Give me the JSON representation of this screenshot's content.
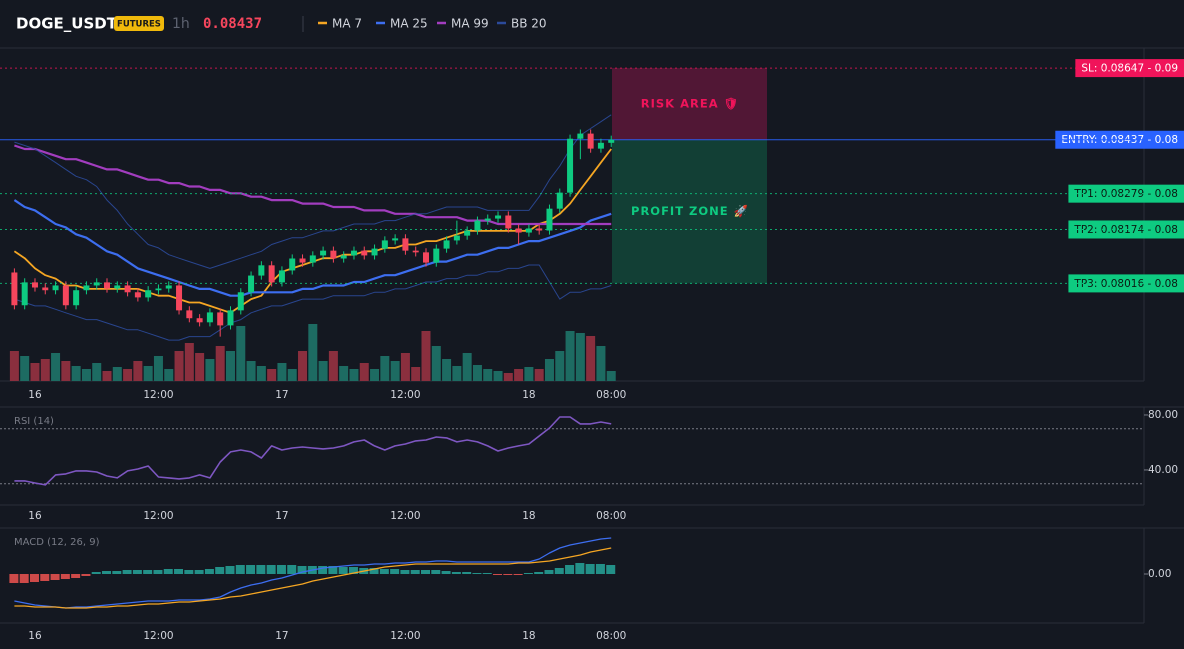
{
  "chart_data": {
    "type": "candlestick",
    "symbol": "DOGE_USDT",
    "badge": "FUTURES",
    "interval": "1h",
    "last_price": 0.08437,
    "categories": [
      null,
      null,
      "16",
      null,
      null,
      null,
      null,
      null,
      null,
      null,
      null,
      null,
      null,
      null,
      "12:00",
      null,
      null,
      null,
      null,
      null,
      null,
      null,
      null,
      null,
      null,
      null,
      "17",
      null,
      null,
      null,
      null,
      null,
      null,
      null,
      null,
      null,
      null,
      null,
      "12:00",
      null,
      null,
      null,
      null,
      null,
      null,
      null,
      null,
      null,
      null,
      null,
      "18",
      null,
      null,
      null,
      null,
      null,
      null,
      null,
      "08:00"
    ],
    "open": [
      0.08048,
      0.07952,
      0.08019,
      0.08004,
      0.07996,
      0.0801,
      0.07952,
      0.07996,
      0.0801,
      0.08019,
      0.08001,
      0.0801,
      0.0799,
      0.07975,
      0.07996,
      0.08001,
      0.0801,
      0.07937,
      0.07914,
      0.07902,
      0.07931,
      0.07893,
      0.07937,
      0.0799,
      0.08039,
      0.08069,
      0.08019,
      0.08054,
      0.08089,
      0.08077,
      0.08098,
      0.08112,
      0.08089,
      0.08098,
      0.08112,
      0.08098,
      0.08118,
      0.08142,
      0.08148,
      0.08112,
      0.08107,
      0.08077,
      0.08118,
      0.08142,
      0.08156,
      0.08171,
      0.082,
      0.08206,
      0.08215,
      0.08177,
      0.08165,
      0.08177,
      0.08171,
      0.08235,
      0.08282,
      0.0844,
      0.08455,
      0.08411,
      0.08428
    ],
    "high": [
      0.0806,
      0.08031,
      0.08031,
      0.08016,
      0.08022,
      0.08022,
      0.08008,
      0.08022,
      0.08031,
      0.08031,
      0.08022,
      0.08022,
      0.08002,
      0.08008,
      0.08013,
      0.08022,
      0.08022,
      0.07949,
      0.07926,
      0.07943,
      0.07943,
      0.07949,
      0.08002,
      0.08051,
      0.08081,
      0.08081,
      0.08066,
      0.08101,
      0.08101,
      0.0811,
      0.08124,
      0.08124,
      0.0811,
      0.08124,
      0.08124,
      0.0813,
      0.08154,
      0.0816,
      0.0816,
      0.08124,
      0.08119,
      0.0813,
      0.08154,
      0.082,
      0.08183,
      0.08212,
      0.08218,
      0.08227,
      0.08227,
      0.08189,
      0.08189,
      0.08189,
      0.08247,
      0.08294,
      0.08452,
      0.08467,
      0.08467,
      0.0844,
      0.08449
    ],
    "low": [
      0.0794,
      0.0794,
      0.07992,
      0.07984,
      0.07984,
      0.0794,
      0.0794,
      0.07984,
      0.07998,
      0.07989,
      0.07989,
      0.07978,
      0.07963,
      0.07963,
      0.07984,
      0.07989,
      0.07925,
      0.07902,
      0.0789,
      0.0789,
      0.0786,
      0.07881,
      0.07925,
      0.07978,
      0.08027,
      0.08007,
      0.08007,
      0.08042,
      0.08065,
      0.08065,
      0.08086,
      0.08077,
      0.08077,
      0.08086,
      0.08086,
      0.08086,
      0.08106,
      0.0813,
      0.081,
      0.08095,
      0.08065,
      0.08065,
      0.08106,
      0.0813,
      0.08144,
      0.08159,
      0.08188,
      0.08194,
      0.08165,
      0.0813,
      0.08153,
      0.08159,
      0.08159,
      0.08223,
      0.0827,
      0.0838,
      0.08399,
      0.08399,
      0.08416
    ],
    "close": [
      0.07952,
      0.08019,
      0.08004,
      0.07996,
      0.0801,
      0.07952,
      0.07996,
      0.0801,
      0.08019,
      0.08001,
      0.0801,
      0.0799,
      0.07975,
      0.07996,
      0.08001,
      0.0801,
      0.07937,
      0.07914,
      0.07902,
      0.07931,
      0.07893,
      0.07937,
      0.0799,
      0.08039,
      0.08069,
      0.08019,
      0.08054,
      0.08089,
      0.08077,
      0.08098,
      0.08112,
      0.08089,
      0.08098,
      0.08112,
      0.08098,
      0.08118,
      0.08142,
      0.08148,
      0.08112,
      0.08107,
      0.08077,
      0.08118,
      0.08142,
      0.08156,
      0.08171,
      0.082,
      0.08206,
      0.08215,
      0.08177,
      0.08165,
      0.08177,
      0.08171,
      0.08235,
      0.08282,
      0.0844,
      0.08455,
      0.08411,
      0.08428,
      0.08437
    ],
    "volume": [
      30,
      25,
      18,
      22,
      28,
      20,
      15,
      12,
      18,
      10,
      14,
      12,
      20,
      15,
      25,
      12,
      30,
      38,
      28,
      22,
      35,
      30,
      55,
      20,
      15,
      12,
      18,
      12,
      30,
      57,
      20,
      30,
      15,
      12,
      18,
      12,
      25,
      20,
      28,
      14,
      50,
      35,
      22,
      15,
      28,
      16,
      12,
      10,
      8,
      12,
      14,
      12,
      22,
      30,
      50,
      48,
      45,
      35,
      10
    ],
    "colors": {
      "up": "#0ecb81",
      "down": "#f6465d",
      "volume_up": "#1d6b62",
      "volume_down": "#8a2f3e"
    },
    "ylim": [
      0.0773,
      0.087
    ],
    "volume_ylim": [
      0,
      100
    ],
    "overlays": [
      {
        "name": "MA 7",
        "color": "#f5a623",
        "width": 1.8,
        "values": [
          0.0811,
          0.0809,
          0.0806,
          0.0804,
          0.0803,
          0.0801,
          0.0801,
          0.08,
          0.08,
          0.08,
          0.08,
          0.08,
          0.08,
          0.0799,
          0.0798,
          0.0798,
          0.0797,
          0.0796,
          0.0796,
          0.0795,
          0.0794,
          0.0793,
          0.0795,
          0.0797,
          0.0798,
          0.0802,
          0.0805,
          0.0806,
          0.0807,
          0.0808,
          0.0809,
          0.0809,
          0.081,
          0.081,
          0.0811,
          0.0811,
          0.0812,
          0.0812,
          0.0813,
          0.0813,
          0.0814,
          0.0814,
          0.0815,
          0.0816,
          0.0817,
          0.0817,
          0.0817,
          0.0817,
          0.0817,
          0.0817,
          0.0817,
          0.0819,
          0.082,
          0.0822,
          0.0825,
          0.0829,
          0.0833,
          0.0837,
          0.0841
        ]
      },
      {
        "name": "MA 25",
        "color": "#3d6ef0",
        "width": 2.2,
        "values": [
          0.0826,
          0.0824,
          0.0823,
          0.0821,
          0.0819,
          0.0818,
          0.0816,
          0.0815,
          0.0813,
          0.0811,
          0.081,
          0.0808,
          0.0806,
          0.0805,
          0.0804,
          0.0803,
          0.0802,
          0.0801,
          0.08,
          0.08,
          0.0799,
          0.0798,
          0.0798,
          0.0799,
          0.0799,
          0.0799,
          0.0799,
          0.0799,
          0.08,
          0.08,
          0.0801,
          0.0801,
          0.0801,
          0.0802,
          0.0802,
          0.0803,
          0.0804,
          0.0804,
          0.0805,
          0.0806,
          0.0807,
          0.0808,
          0.0808,
          0.0809,
          0.081,
          0.081,
          0.0811,
          0.0812,
          0.0812,
          0.0813,
          0.0814,
          0.0814,
          0.0815,
          0.0816,
          0.0817,
          0.0818,
          0.082,
          0.0821,
          0.0822
        ]
      },
      {
        "name": "MA 99",
        "color": "#a23dbf",
        "width": 2.2,
        "values": [
          0.0842,
          0.0841,
          0.0841,
          0.084,
          0.0839,
          0.0838,
          0.0838,
          0.0837,
          0.0836,
          0.0835,
          0.0835,
          0.0834,
          0.0833,
          0.0832,
          0.0832,
          0.0831,
          0.0831,
          0.083,
          0.083,
          0.0829,
          0.0829,
          0.0828,
          0.0828,
          0.0827,
          0.0827,
          0.0826,
          0.0826,
          0.0826,
          0.0825,
          0.0825,
          0.0825,
          0.0824,
          0.0824,
          0.0824,
          0.0823,
          0.0823,
          0.0823,
          0.0822,
          0.0822,
          0.0822,
          0.0821,
          0.0821,
          0.0821,
          0.0821,
          0.082,
          0.082,
          0.082,
          0.0819,
          0.0819,
          0.0819,
          0.0819,
          0.0819,
          0.0819,
          0.0819,
          0.0819,
          0.0819,
          0.0819,
          0.0819,
          0.0819
        ]
      },
      {
        "name": "BB 20",
        "color": "#2b4a9a",
        "width": 1,
        "values": [
          0.0843,
          0.0842,
          0.0841,
          0.0839,
          0.0837,
          0.0835,
          0.0833,
          0.0832,
          0.083,
          0.0826,
          0.0823,
          0.0819,
          0.0816,
          0.0813,
          0.0812,
          0.081,
          0.0809,
          0.0808,
          0.0807,
          0.0806,
          0.0807,
          0.0808,
          0.0809,
          0.081,
          0.0811,
          0.0813,
          0.0814,
          0.0815,
          0.0815,
          0.0816,
          0.0817,
          0.0817,
          0.0818,
          0.0819,
          0.0819,
          0.0819,
          0.082,
          0.082,
          0.0821,
          0.0822,
          0.0822,
          0.0823,
          0.0824,
          0.0824,
          0.0824,
          0.0824,
          0.0823,
          0.0823,
          0.0823,
          0.0823,
          0.0823,
          0.0827,
          0.0832,
          0.0836,
          0.0841,
          0.0845,
          0.0847,
          0.0849,
          0.0851
        ],
        "lower": [
          0.0797,
          0.0796,
          0.0795,
          0.0795,
          0.0794,
          0.0793,
          0.0792,
          0.0791,
          0.0791,
          0.079,
          0.0789,
          0.0788,
          0.0788,
          0.0787,
          0.0786,
          0.0785,
          0.0785,
          0.0786,
          0.0786,
          0.0786,
          0.0788,
          0.079,
          0.0791,
          0.0793,
          0.0794,
          0.0795,
          0.0795,
          0.0796,
          0.0797,
          0.0797,
          0.0797,
          0.0798,
          0.0798,
          0.0798,
          0.0798,
          0.0799,
          0.0799,
          0.08,
          0.08,
          0.0801,
          0.0802,
          0.0802,
          0.0803,
          0.0803,
          0.0804,
          0.0804,
          0.0805,
          0.0805,
          0.0806,
          0.0806,
          0.0807,
          0.0807,
          0.0802,
          0.0797,
          0.0799,
          0.0799,
          0.08,
          0.08,
          0.0801
        ]
      }
    ],
    "levels": [
      {
        "value": 0.08647,
        "label": "SL: 0.08647 - 0.09",
        "color": "#f0145a",
        "text_color": "#ffffff",
        "dash": "2 3"
      },
      {
        "value": 0.08437,
        "label": "ENTRY: 0.08437 - 0.08",
        "color": "#2962ff",
        "text_color": "#ffffff",
        "dash": "none"
      },
      {
        "value": 0.08279,
        "label": "TP1: 0.08279 - 0.08",
        "color": "#0ecb81",
        "text_color": "#0b1a12",
        "dash": "2 3"
      },
      {
        "value": 0.08174,
        "label": "TP2: 0.08174 - 0.08",
        "color": "#0ecb81",
        "text_color": "#0b1a12",
        "dash": "2 3"
      },
      {
        "value": 0.08016,
        "label": "TP3: 0.08016 - 0.08",
        "color": "#0ecb81",
        "text_color": "#0b1a12",
        "dash": "2 3"
      }
    ],
    "zones": [
      {
        "label": "RISK AREA 🛡",
        "color": "#c2185b",
        "text_color": "#f0145a"
      },
      {
        "label": "PROFIT ZONE 🚀",
        "color": "#0ecb81",
        "text_color": "#0ecb81"
      }
    ],
    "rsi": {
      "title": "RSI (14)",
      "color": "#7e57c2",
      "ylim": [
        14.5,
        85.8
      ],
      "yticks": [
        {
          "value": 80,
          "label": "80.00"
        },
        {
          "value": 40,
          "label": "40.00"
        }
      ],
      "levels": [
        70,
        30
      ],
      "values": [
        32.0,
        32.0,
        30.5,
        29.1,
        36.4,
        37.1,
        39.3,
        39.3,
        38.5,
        35.6,
        34.2,
        39.3,
        40.7,
        42.9,
        34.9,
        34.2,
        33.5,
        34.2,
        36.4,
        34.2,
        45.8,
        53.1,
        54.5,
        53.1,
        48.7,
        57.5,
        54.5,
        56.0,
        56.7,
        56.0,
        55.3,
        56.0,
        57.5,
        60.4,
        61.8,
        57.5,
        54.5,
        57.5,
        58.9,
        61.1,
        61.8,
        64.0,
        63.3,
        60.4,
        61.8,
        60.4,
        57.5,
        53.8,
        56.0,
        57.5,
        58.9,
        64.7,
        70.5,
        78.5,
        78.5,
        73.5,
        73.5,
        74.9,
        73.5
      ]
    },
    "macd": {
      "title": "MACD (12, 26, 9)",
      "ylim": [
        -0.00049,
        0.00046
      ],
      "yticks": [
        {
          "value": 0,
          "label": "0.00"
        }
      ],
      "macd_color": "#3d6ef0",
      "signal_color": "#f5a623",
      "histogram_colors": {
        "up": "#26a69a",
        "down": "#ef5350"
      },
      "macd": [
        -0.00027,
        -0.00029,
        -0.00031,
        -0.00032,
        -0.00033,
        -0.00034,
        -0.00033,
        -0.00033,
        -0.00032,
        -0.00031,
        -0.0003,
        -0.00029,
        -0.00028,
        -0.00027,
        -0.00027,
        -0.00027,
        -0.00026,
        -0.00026,
        -0.00026,
        -0.00025,
        -0.00023,
        -0.00018,
        -0.00014,
        -0.00011,
        -9e-05,
        -6e-05,
        -4e-05,
        -1e-05,
        2e-05,
        4e-05,
        6e-05,
        7e-05,
        8e-05,
        9e-05,
        9e-05,
        0.0001,
        0.0001,
        0.00011,
        0.00011,
        0.00012,
        0.00012,
        0.00013,
        0.00013,
        0.00012,
        0.00012,
        0.00012,
        0.00012,
        0.00012,
        0.00012,
        0.00012,
        0.00012,
        0.00015,
        0.00021,
        0.00026,
        0.00029,
        0.00031,
        0.00033,
        0.00035,
        0.00036
      ],
      "signal": [
        -0.00032,
        -0.00032,
        -0.00033,
        -0.00033,
        -0.00033,
        -0.00034,
        -0.00034,
        -0.00034,
        -0.00033,
        -0.00033,
        -0.00032,
        -0.00032,
        -0.00031,
        -0.0003,
        -0.0003,
        -0.00029,
        -0.00028,
        -0.00028,
        -0.00027,
        -0.00026,
        -0.00025,
        -0.00023,
        -0.00022,
        -0.0002,
        -0.00018,
        -0.00016,
        -0.00014,
        -0.00012,
        -0.0001,
        -7e-05,
        -5e-05,
        -3e-05,
        -1e-05,
        1e-05,
        3e-05,
        5e-05,
        7e-05,
        8e-05,
        9e-05,
        0.0001,
        0.0001,
        0.0001,
        0.0001,
        0.0001,
        0.0001,
        0.0001,
        0.0001,
        0.0001,
        0.0001,
        0.00011,
        0.00011,
        0.00012,
        0.00013,
        0.00015,
        0.00017,
        0.00019,
        0.00022,
        0.00024,
        0.00026
      ],
      "histogram": [
        -9e-05,
        -9e-05,
        -8e-05,
        -7e-05,
        -6e-05,
        -5e-05,
        -4e-05,
        -2e-05,
        2e-05,
        3e-05,
        3e-05,
        4e-05,
        4e-05,
        4e-05,
        4e-05,
        5e-05,
        5e-05,
        4e-05,
        4e-05,
        5e-05,
        7e-05,
        8e-05,
        9e-05,
        9e-05,
        9e-05,
        9e-05,
        9e-05,
        9e-05,
        8e-05,
        8e-05,
        8e-05,
        8e-05,
        7e-05,
        7e-05,
        6e-05,
        6e-05,
        5e-05,
        5e-05,
        4e-05,
        4e-05,
        4e-05,
        4e-05,
        3e-05,
        2e-05,
        2e-05,
        1e-05,
        1e-05,
        -1e-05,
        -1e-05,
        -1e-05,
        1e-05,
        2e-05,
        4e-05,
        6e-05,
        9e-05,
        0.00011,
        0.0001,
        0.0001,
        9e-05
      ]
    }
  }
}
